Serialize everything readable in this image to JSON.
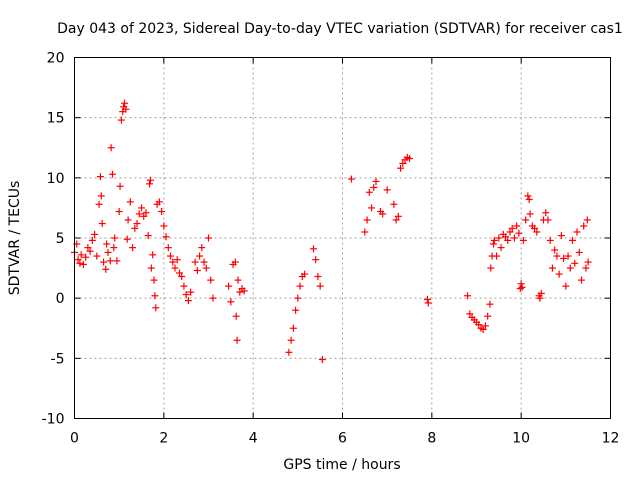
{
  "chart_data": {
    "type": "scatter",
    "title": "Day 043 of 2023, Sidereal Day-to-day VTEC variation (SDTVAR) for receiver cas1",
    "xlabel": "GPS time / hours",
    "ylabel": "SDTVAR / TECUs",
    "xlim": [
      0,
      12
    ],
    "ylim": [
      -10,
      20
    ],
    "xticks": [
      0,
      2,
      4,
      6,
      8,
      10,
      12
    ],
    "yticks": [
      -10,
      -5,
      0,
      5,
      10,
      15,
      20
    ],
    "grid": true,
    "marker": "+",
    "color": "#ff0000",
    "series": [
      {
        "name": "SDTVAR",
        "points": [
          [
            0.0,
            3.8
          ],
          [
            0.05,
            4.5
          ],
          [
            0.08,
            3.2
          ],
          [
            0.12,
            2.9
          ],
          [
            0.15,
            3.6
          ],
          [
            0.2,
            2.8
          ],
          [
            0.25,
            3.4
          ],
          [
            0.3,
            4.2
          ],
          [
            0.35,
            3.9
          ],
          [
            0.4,
            4.8
          ],
          [
            0.45,
            5.3
          ],
          [
            0.5,
            3.5
          ],
          [
            0.55,
            7.8
          ],
          [
            0.58,
            10.1
          ],
          [
            0.6,
            8.5
          ],
          [
            0.62,
            6.2
          ],
          [
            0.65,
            3.0
          ],
          [
            0.7,
            2.4
          ],
          [
            0.72,
            4.5
          ],
          [
            0.75,
            3.8
          ],
          [
            0.8,
            3.1
          ],
          [
            0.82,
            12.5
          ],
          [
            0.85,
            10.3
          ],
          [
            0.88,
            4.2
          ],
          [
            0.9,
            5.0
          ],
          [
            0.95,
            3.1
          ],
          [
            1.0,
            7.2
          ],
          [
            1.02,
            9.3
          ],
          [
            1.05,
            14.8
          ],
          [
            1.08,
            15.5
          ],
          [
            1.1,
            15.9
          ],
          [
            1.12,
            16.2
          ],
          [
            1.15,
            15.7
          ],
          [
            1.18,
            4.9
          ],
          [
            1.2,
            6.5
          ],
          [
            1.25,
            8.0
          ],
          [
            1.3,
            4.2
          ],
          [
            1.35,
            5.8
          ],
          [
            1.4,
            6.2
          ],
          [
            1.45,
            7.0
          ],
          [
            1.5,
            7.5
          ],
          [
            1.55,
            6.8
          ],
          [
            1.6,
            7.1
          ],
          [
            1.65,
            5.2
          ],
          [
            1.68,
            9.5
          ],
          [
            1.7,
            9.8
          ],
          [
            1.72,
            2.5
          ],
          [
            1.75,
            3.6
          ],
          [
            1.78,
            1.5
          ],
          [
            1.8,
            0.2
          ],
          [
            1.82,
            -0.8
          ],
          [
            1.85,
            7.8
          ],
          [
            1.9,
            8.0
          ],
          [
            1.95,
            7.2
          ],
          [
            2.0,
            6.0
          ],
          [
            2.05,
            5.1
          ],
          [
            2.1,
            4.2
          ],
          [
            2.15,
            3.5
          ],
          [
            2.2,
            3.0
          ],
          [
            2.25,
            2.5
          ],
          [
            2.3,
            3.2
          ],
          [
            2.35,
            2.1
          ],
          [
            2.4,
            1.8
          ],
          [
            2.45,
            1.0
          ],
          [
            2.5,
            0.3
          ],
          [
            2.55,
            -0.2
          ],
          [
            2.6,
            0.5
          ],
          [
            2.7,
            3.0
          ],
          [
            2.75,
            2.3
          ],
          [
            2.8,
            3.5
          ],
          [
            2.85,
            4.2
          ],
          [
            2.9,
            3.0
          ],
          [
            2.95,
            2.5
          ],
          [
            3.0,
            5.0
          ],
          [
            3.05,
            1.5
          ],
          [
            3.1,
            0.0
          ],
          [
            3.45,
            1.0
          ],
          [
            3.5,
            -0.3
          ],
          [
            3.55,
            2.8
          ],
          [
            3.6,
            3.0
          ],
          [
            3.62,
            -1.5
          ],
          [
            3.64,
            -3.5
          ],
          [
            3.66,
            1.5
          ],
          [
            3.7,
            0.5
          ],
          [
            3.75,
            0.8
          ],
          [
            3.8,
            0.6
          ],
          [
            4.8,
            -4.5
          ],
          [
            4.85,
            -3.5
          ],
          [
            4.9,
            -2.5
          ],
          [
            4.95,
            -1.0
          ],
          [
            5.0,
            0.0
          ],
          [
            5.05,
            1.0
          ],
          [
            5.1,
            1.8
          ],
          [
            5.15,
            2.0
          ],
          [
            5.35,
            4.1
          ],
          [
            5.4,
            3.2
          ],
          [
            5.45,
            1.8
          ],
          [
            5.5,
            1.0
          ],
          [
            5.55,
            -5.1
          ],
          [
            6.2,
            9.9
          ],
          [
            6.5,
            5.5
          ],
          [
            6.55,
            6.5
          ],
          [
            6.6,
            8.8
          ],
          [
            6.65,
            7.5
          ],
          [
            6.7,
            9.2
          ],
          [
            6.75,
            9.7
          ],
          [
            6.85,
            7.2
          ],
          [
            6.9,
            7.0
          ],
          [
            7.0,
            9.0
          ],
          [
            7.15,
            7.8
          ],
          [
            7.2,
            6.5
          ],
          [
            7.25,
            6.8
          ],
          [
            7.3,
            10.8
          ],
          [
            7.35,
            11.2
          ],
          [
            7.4,
            11.5
          ],
          [
            7.45,
            11.7
          ],
          [
            7.5,
            11.6
          ],
          [
            7.9,
            -0.1
          ],
          [
            7.92,
            -0.4
          ],
          [
            8.8,
            0.2
          ],
          [
            8.85,
            -1.3
          ],
          [
            8.9,
            -1.6
          ],
          [
            8.95,
            -1.8
          ],
          [
            9.0,
            -2.0
          ],
          [
            9.05,
            -2.2
          ],
          [
            9.1,
            -2.5
          ],
          [
            9.15,
            -2.6
          ],
          [
            9.2,
            -2.3
          ],
          [
            9.25,
            -1.5
          ],
          [
            9.3,
            -0.5
          ],
          [
            9.32,
            2.5
          ],
          [
            9.35,
            3.5
          ],
          [
            9.38,
            4.5
          ],
          [
            9.4,
            4.8
          ],
          [
            9.45,
            3.5
          ],
          [
            9.5,
            5.0
          ],
          [
            9.55,
            4.2
          ],
          [
            9.6,
            5.3
          ],
          [
            9.65,
            5.1
          ],
          [
            9.7,
            4.8
          ],
          [
            9.75,
            5.5
          ],
          [
            9.8,
            5.8
          ],
          [
            9.85,
            5.0
          ],
          [
            9.9,
            6.0
          ],
          [
            9.95,
            5.4
          ],
          [
            9.98,
            0.8
          ],
          [
            10.0,
            1.2
          ],
          [
            10.02,
            0.9
          ],
          [
            10.05,
            4.8
          ],
          [
            10.1,
            6.5
          ],
          [
            10.15,
            8.5
          ],
          [
            10.18,
            8.2
          ],
          [
            10.2,
            7.0
          ],
          [
            10.25,
            6.0
          ],
          [
            10.3,
            5.8
          ],
          [
            10.35,
            5.5
          ],
          [
            10.4,
            0.2
          ],
          [
            10.42,
            0.0
          ],
          [
            10.45,
            0.4
          ],
          [
            10.5,
            6.5
          ],
          [
            10.55,
            7.1
          ],
          [
            10.6,
            6.5
          ],
          [
            10.65,
            4.8
          ],
          [
            10.7,
            2.5
          ],
          [
            10.75,
            4.0
          ],
          [
            10.8,
            3.5
          ],
          [
            10.85,
            2.0
          ],
          [
            10.9,
            5.2
          ],
          [
            10.95,
            3.3
          ],
          [
            11.0,
            1.0
          ],
          [
            11.05,
            3.5
          ],
          [
            11.1,
            2.5
          ],
          [
            11.15,
            4.8
          ],
          [
            11.2,
            2.9
          ],
          [
            11.25,
            5.5
          ],
          [
            11.3,
            3.8
          ],
          [
            11.35,
            1.5
          ],
          [
            11.4,
            6.0
          ],
          [
            11.45,
            2.5
          ],
          [
            11.48,
            6.5
          ],
          [
            11.5,
            3.0
          ]
        ]
      }
    ]
  }
}
